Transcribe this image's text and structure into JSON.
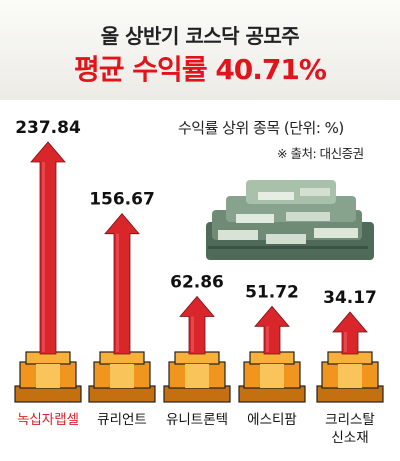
{
  "header": {
    "line1": "올 상반기 코스닥 공모주",
    "line2": "평균 수익률 40.71%"
  },
  "subtitle": "수익률 상위 종목 (단위: %)",
  "source": "※ 출처: 대신증권",
  "colors": {
    "arrow": "#d8262b",
    "pedestal": "#f0961e",
    "highlight_label": "#d8262b",
    "title_accent": "#e3131b"
  },
  "icons": [
    "money-pile-icon"
  ],
  "chart_data": {
    "type": "bar",
    "categories": [
      "녹십자랩셀",
      "큐리언트",
      "유니트론텍",
      "에스티팜",
      "크리스탈\n신소재"
    ],
    "values": [
      237.84,
      156.67,
      62.86,
      51.72,
      34.17
    ],
    "value_labels": [
      "237.84",
      "156.67",
      "62.86",
      "51.72",
      "34.17"
    ],
    "highlight_index": 0,
    "title": "올 상반기 코스닥 공모주",
    "xlabel": "",
    "ylabel": "",
    "ylim": [
      0,
      250
    ],
    "grid": false,
    "legend": "none"
  }
}
